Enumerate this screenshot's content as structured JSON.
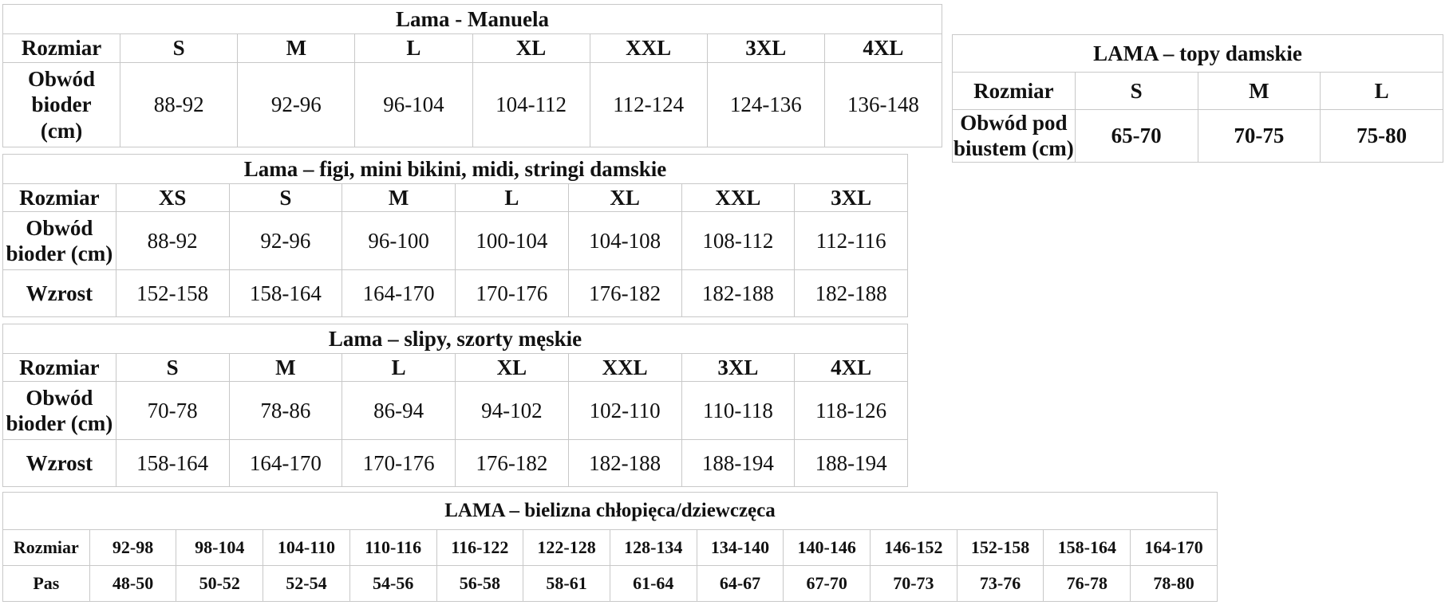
{
  "manuela": {
    "title": "Lama - Manuela",
    "row_label": "Rozmiar",
    "sizes": [
      "S",
      "M",
      "L",
      "XL",
      "XXL",
      "3XL",
      "4XL"
    ],
    "hip_label": "Obwód bioder (cm)",
    "hips": [
      "88-92",
      "92-96",
      "96-104",
      "104-112",
      "112-124",
      "124-136",
      "136-148"
    ]
  },
  "topy": {
    "title": "LAMA – topy damskie",
    "row_label": "Rozmiar",
    "sizes": [
      "S",
      "M",
      "L"
    ],
    "bust_label": "Obwód pod biustem (cm)",
    "bust": [
      "65-70",
      "70-75",
      "75-80"
    ]
  },
  "figi": {
    "title": "Lama – figi, mini bikini, midi, stringi damskie",
    "row_label": "Rozmiar",
    "sizes": [
      "XS",
      "S",
      "M",
      "L",
      "XL",
      "XXL",
      "3XL"
    ],
    "hip_label": "Obwód bioder (cm)",
    "hips": [
      "88-92",
      "92-96",
      "96-100",
      "100-104",
      "104-108",
      "108-112",
      "112-116"
    ],
    "height_label": "Wzrost",
    "heights": [
      "152-158",
      "158-164",
      "164-170",
      "170-176",
      "176-182",
      "182-188",
      "182-188"
    ]
  },
  "slipy": {
    "title": "Lama – slipy, szorty męskie",
    "row_label": "Rozmiar",
    "sizes": [
      "S",
      "M",
      "L",
      "XL",
      "XXL",
      "3XL",
      "4XL"
    ],
    "hip_label": "Obwód bioder (cm)",
    "hips": [
      "70-78",
      "78-86",
      "86-94",
      "94-102",
      "102-110",
      "110-118",
      "118-126"
    ],
    "height_label": "Wzrost",
    "heights": [
      "158-164",
      "164-170",
      "170-176",
      "176-182",
      "182-188",
      "188-194",
      "188-194"
    ]
  },
  "dzieci": {
    "title": "LAMA – bielizna chłopięca/dziewczęca",
    "row_label": "Rozmiar",
    "sizes": [
      "92-98",
      "98-104",
      "104-110",
      "110-116",
      "116-122",
      "122-128",
      "128-134",
      "134-140",
      "140-146",
      "146-152",
      "152-158",
      "158-164",
      "164-170"
    ],
    "waist_label": "Pas",
    "waist": [
      "48-50",
      "50-52",
      "52-54",
      "54-56",
      "56-58",
      "58-61",
      "61-64",
      "64-67",
      "67-70",
      "70-73",
      "73-76",
      "76-78",
      "78-80"
    ]
  }
}
